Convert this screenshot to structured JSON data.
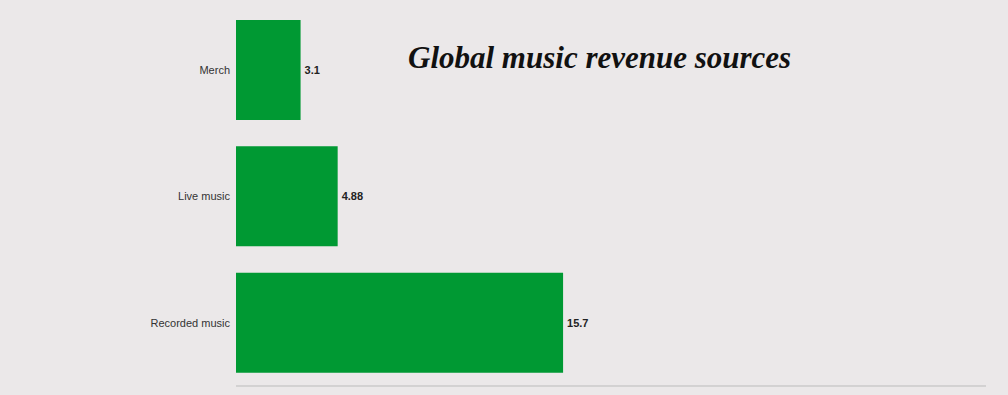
{
  "chart_data": {
    "type": "bar",
    "title": "Global music revenue sources",
    "orientation": "horizontal",
    "categories": [
      "Merch",
      "Live music",
      "Recorded music"
    ],
    "values": [
      3.1,
      4.88,
      15.7
    ],
    "color": "#009933",
    "xlim": [
      0,
      36
    ],
    "data_labels": true,
    "tick_labels": "y",
    "grid": false
  }
}
